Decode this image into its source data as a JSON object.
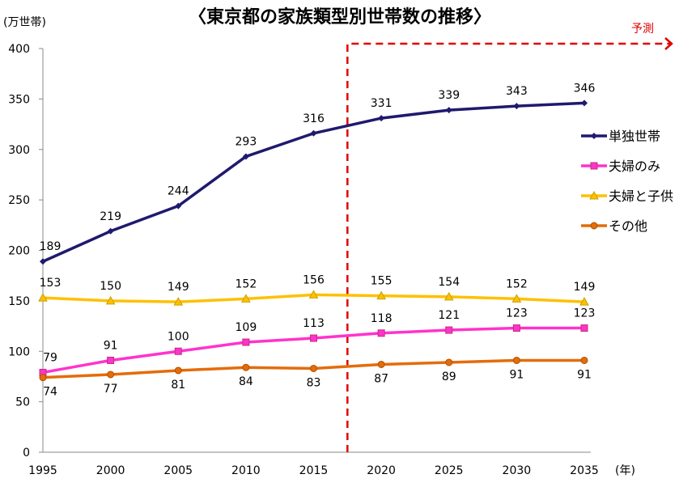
{
  "chart_data": {
    "type": "line",
    "title": "〈東京都の家族類型別世帯数の推移〉",
    "ylabel": "(万世帯)",
    "xlabel": "(年)",
    "x": [
      1995,
      2000,
      2005,
      2010,
      2015,
      2020,
      2025,
      2030,
      2035
    ],
    "ylim": [
      0,
      400
    ],
    "yticks": [
      0,
      50,
      100,
      150,
      200,
      250,
      300,
      350,
      400
    ],
    "grid": false,
    "legend_position": "right",
    "forecast_label": "予測",
    "forecast_start": 2017.5,
    "forecast_color": "#e00000",
    "series": [
      {
        "name": "単独世帯",
        "values": [
          189,
          219,
          244,
          293,
          316,
          331,
          339,
          343,
          346
        ],
        "color": "#1f1a6e",
        "marker": "diamond",
        "label_pos": "above"
      },
      {
        "name": "夫婦のみ",
        "values": [
          79,
          91,
          100,
          109,
          113,
          118,
          121,
          123,
          123
        ],
        "color": "#ff33cc",
        "marker": "square",
        "label_pos": "above"
      },
      {
        "name": "夫婦と子供",
        "values": [
          153,
          150,
          149,
          152,
          156,
          155,
          154,
          152,
          149
        ],
        "color": "#ffc000",
        "marker": "triangle",
        "label_pos": "above"
      },
      {
        "name": "その他",
        "values": [
          74,
          77,
          81,
          84,
          83,
          87,
          89,
          91,
          91
        ],
        "color": "#e46c0a",
        "marker": "circle",
        "label_pos": "below"
      }
    ]
  }
}
